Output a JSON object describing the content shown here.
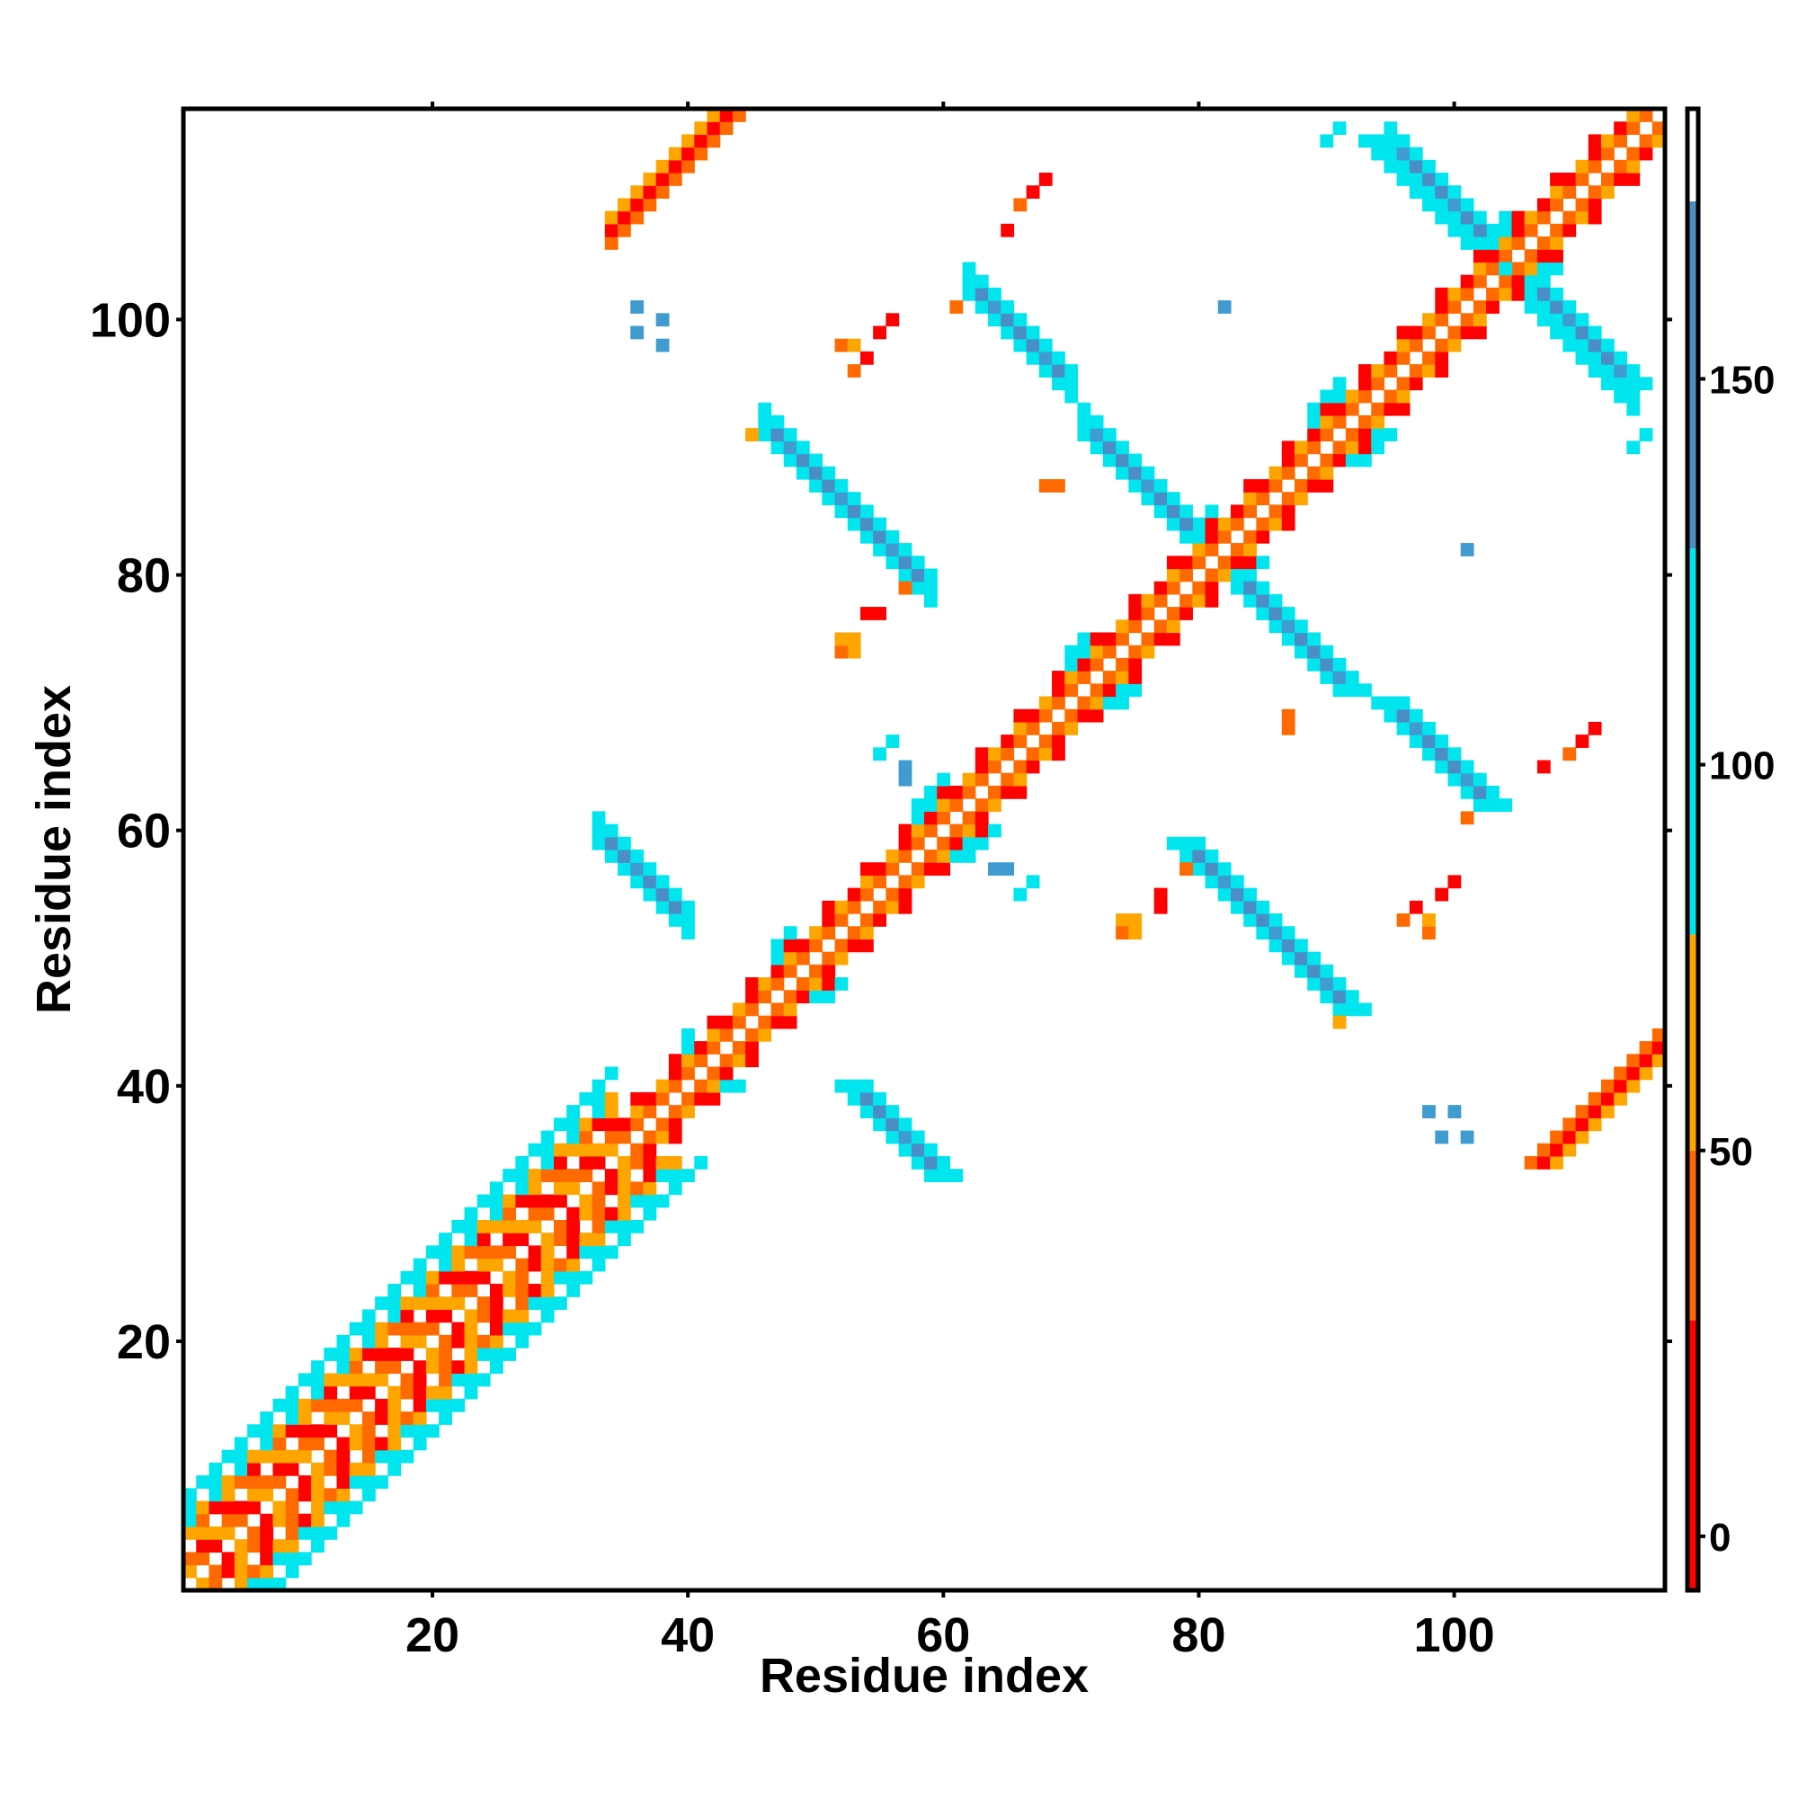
{
  "chart_data": {
    "type": "heatmap",
    "title": "",
    "xlabel": "Residue index",
    "ylabel": "Residue index",
    "x_range": [
      1,
      116
    ],
    "y_range": [
      1,
      116
    ],
    "x_ticks": [
      20,
      40,
      60,
      80,
      100
    ],
    "y_ticks": [
      20,
      40,
      60,
      80,
      100
    ],
    "colorbar": {
      "ticks": [
        0,
        50,
        100,
        150
      ],
      "range": [
        -7,
        185
      ],
      "bands": [
        {
          "from": -7,
          "to": 28,
          "color": "#ff0000"
        },
        {
          "from": 28,
          "to": 50,
          "color": "#ff6a00"
        },
        {
          "from": 50,
          "to": 78,
          "color": "#ffa500"
        },
        {
          "from": 78,
          "to": 128,
          "color": "#00e5ee"
        },
        {
          "from": 128,
          "to": 173,
          "color": "#4a8ec5"
        },
        {
          "from": 173,
          "to": 185,
          "color": "#ffffff"
        }
      ]
    },
    "colors": {
      "red": "#ff0000",
      "orange_red": "#ff6a00",
      "orange": "#ffa500",
      "cyan": "#00e5ee",
      "light_blue": "#2ec8e8",
      "steel_blue": "#4a8ec5",
      "mid_blue": "#3f9bd0"
    },
    "regions": [
      {
        "kind": "diagonal_helix",
        "from": 1,
        "to": 34,
        "value": 40
      },
      {
        "kind": "diagonal_strand",
        "from": 34,
        "to": 116,
        "value": 15
      },
      {
        "kind": "antiparallel_pair",
        "x": [
          33,
          40
        ],
        "y": [
          52,
          60
        ],
        "value": 155
      },
      {
        "kind": "antiparallel_pair",
        "x": [
          52,
          60
        ],
        "y": [
          33,
          40
        ],
        "value": 155
      },
      {
        "kind": "antiparallel_pair",
        "x": [
          46,
          60
        ],
        "y": [
          79,
          92
        ],
        "value": 155
      },
      {
        "kind": "antiparallel_pair",
        "x": [
          79,
          92
        ],
        "y": [
          46,
          60
        ],
        "value": 155
      },
      {
        "kind": "antiparallel_pair",
        "x": [
          71,
          80
        ],
        "y": [
          82,
          92
        ],
        "value": 155
      },
      {
        "kind": "antiparallel_pair",
        "x": [
          82,
          92
        ],
        "y": [
          71,
          80
        ],
        "value": 155
      },
      {
        "kind": "antiparallel_pair",
        "x": [
          62,
          70
        ],
        "y": [
          95,
          103
        ],
        "value": 155
      },
      {
        "kind": "antiparallel_pair",
        "x": [
          95,
          103
        ],
        "y": [
          62,
          70
        ],
        "value": 155
      },
      {
        "kind": "antiparallel_pair",
        "x": [
          95,
          104
        ],
        "y": [
          104,
          114
        ],
        "value": 155
      },
      {
        "kind": "antiparallel_pair",
        "x": [
          104,
          114
        ],
        "y": [
          95,
          104
        ],
        "value": 155
      },
      {
        "kind": "parallel_pair",
        "x": [
          34,
          47
        ],
        "y": [
          107,
          116
        ],
        "value": 20
      },
      {
        "kind": "parallel_pair",
        "x": [
          107,
          116
        ],
        "y": [
          34,
          47
        ],
        "value": 20
      },
      {
        "kind": "contact_cluster",
        "x": [
          52,
          58
        ],
        "y": [
          97,
          101
        ],
        "value": 25
      },
      {
        "kind": "contact_cluster",
        "x": [
          97,
          101
        ],
        "y": [
          52,
          58
        ],
        "value": 25
      },
      {
        "kind": "contact_cluster",
        "x": [
          65,
          68
        ],
        "y": [
          107,
          111
        ],
        "value": 25
      },
      {
        "kind": "contact_cluster",
        "x": [
          107,
          111
        ],
        "y": [
          65,
          68
        ],
        "value": 25
      },
      {
        "kind": "contact_cluster",
        "x": [
          55,
          60
        ],
        "y": [
          62,
          67
        ],
        "value": 110
      },
      {
        "kind": "contact_cluster",
        "x": [
          62,
          67
        ],
        "y": [
          55,
          60
        ],
        "value": 110
      }
    ]
  }
}
